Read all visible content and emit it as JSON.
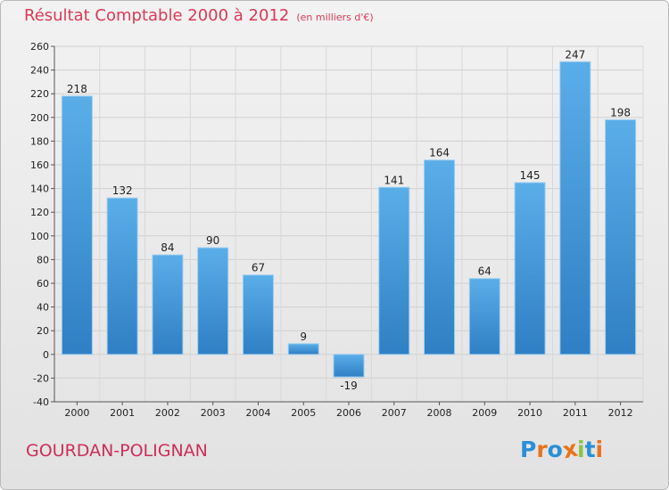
{
  "chart_data": {
    "type": "bar",
    "title": "Résultat Comptable 2000 à 2012",
    "subtitle": "(en milliers d'€)",
    "categories": [
      "2000",
      "2001",
      "2002",
      "2003",
      "2004",
      "2005",
      "2006",
      "2007",
      "2008",
      "2009",
      "2010",
      "2011",
      "2012"
    ],
    "values": [
      218,
      132,
      84,
      90,
      67,
      9,
      -19,
      141,
      164,
      64,
      145,
      247,
      198
    ],
    "value_labels": [
      "218",
      "132",
      "84",
      "90",
      "67",
      "9",
      "-19",
      "141",
      "164",
      "64",
      "145",
      "247",
      "198"
    ],
    "ylim": [
      -40,
      260
    ],
    "yticks": [
      -40,
      -20,
      0,
      20,
      40,
      60,
      80,
      100,
      120,
      140,
      160,
      180,
      200,
      220,
      240,
      260
    ],
    "xlabel": "",
    "ylabel": "",
    "grid": true,
    "bar_color_top": "#5aaee8",
    "bar_color_bottom": "#2f7fc4"
  },
  "footer": {
    "commune": "GOURDAN-POLIGNAN",
    "logo_text": "Proxiti"
  },
  "colors": {
    "title": "#d83a57",
    "commune": "#cc2e5a",
    "logo_letters": [
      "#2b8fd6",
      "#e8731a",
      "#2b8fd6",
      "#e8731a",
      "#8bc34a",
      "#2b8fd6",
      "#e8731a"
    ]
  }
}
